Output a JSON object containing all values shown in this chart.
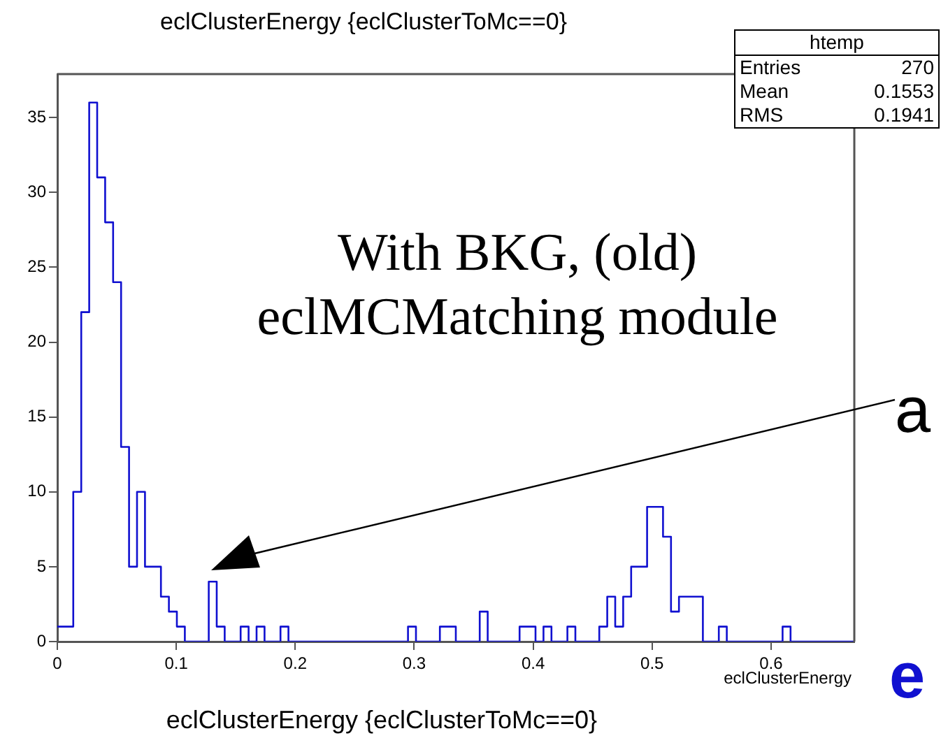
{
  "chart_data": {
    "type": "histogram",
    "title": "eclClusterEnergy {eclClusterToMc==0}",
    "xlabel": "eclClusterEnergy",
    "annotations": [
      "With BKG, (old)\neclMCMatching module",
      "eclClusterEnergy {eclClusterToMc==0}",
      "htemp",
      "Entries",
      "270",
      "Mean",
      "0.1553",
      "RMS",
      "0.1941",
      "a",
      "e"
    ],
    "bins": [
      0,
      0.0067,
      0.0134,
      0.0201,
      0.0268,
      0.0335,
      0.0402,
      0.0469,
      0.0536,
      0.0603,
      0.067,
      0.0737,
      0.0804,
      0.0871,
      0.0938,
      0.1005,
      0.1072,
      0.1139,
      0.1206,
      0.1273,
      0.134,
      0.1407,
      0.1474,
      0.1541,
      0.1608,
      0.1675,
      0.1742,
      0.1809,
      0.1876,
      0.1943,
      0.201,
      0.2077,
      0.2144,
      0.2211,
      0.2278,
      0.2345,
      0.2412,
      0.2479,
      0.2546,
      0.2613,
      0.268,
      0.2747,
      0.2814,
      0.2881,
      0.2948,
      0.3015,
      0.3082,
      0.3149,
      0.3216,
      0.3283,
      0.335,
      0.3417,
      0.3484,
      0.3551,
      0.3618,
      0.3685,
      0.3752,
      0.3819,
      0.3886,
      0.3953,
      0.402,
      0.4087,
      0.4154,
      0.4221,
      0.4288,
      0.4355,
      0.4422,
      0.4489,
      0.4556,
      0.4623,
      0.469,
      0.4757,
      0.4824,
      0.4891,
      0.4958,
      0.5025,
      0.5092,
      0.5159,
      0.5226,
      0.5293,
      0.536,
      0.5427,
      0.5494,
      0.5561,
      0.5628,
      0.5695,
      0.5762,
      0.5829,
      0.5896,
      0.5963,
      0.603,
      0.6097,
      0.6164,
      0.6231,
      0.6298,
      0.6365,
      0.6432,
      0.6499,
      0.6566,
      0.6633,
      0.67
    ],
    "values": [
      1,
      1,
      10,
      22,
      36,
      31,
      28,
      24,
      13,
      5,
      10,
      5,
      5,
      3,
      2,
      1,
      0,
      0,
      0,
      4,
      1,
      0,
      0,
      1,
      0,
      1,
      0,
      0,
      1,
      0,
      0,
      0,
      0,
      0,
      0,
      0,
      0,
      0,
      0,
      0,
      0,
      0,
      0,
      0,
      1,
      0,
      0,
      0,
      1,
      1,
      0,
      0,
      0,
      2,
      0,
      0,
      0,
      0,
      1,
      1,
      0,
      1,
      0,
      0,
      1,
      0,
      0,
      0,
      1,
      3,
      1,
      3,
      5,
      5,
      9,
      9,
      7,
      2,
      3,
      3,
      3,
      0,
      0,
      1,
      0,
      0,
      0,
      0,
      0,
      0,
      0,
      1,
      0,
      0,
      0,
      0,
      0,
      0,
      0,
      0
    ],
    "color": "#1010d0",
    "xlim": [
      0,
      0.67
    ],
    "xticks": [
      0,
      0.1,
      0.2,
      0.3,
      0.4,
      0.5,
      0.6
    ],
    "ylim": [
      0,
      37.9
    ],
    "yticks": [
      0,
      5,
      10,
      15,
      20,
      25,
      30,
      35
    ],
    "grid": false,
    "legend": false
  }
}
